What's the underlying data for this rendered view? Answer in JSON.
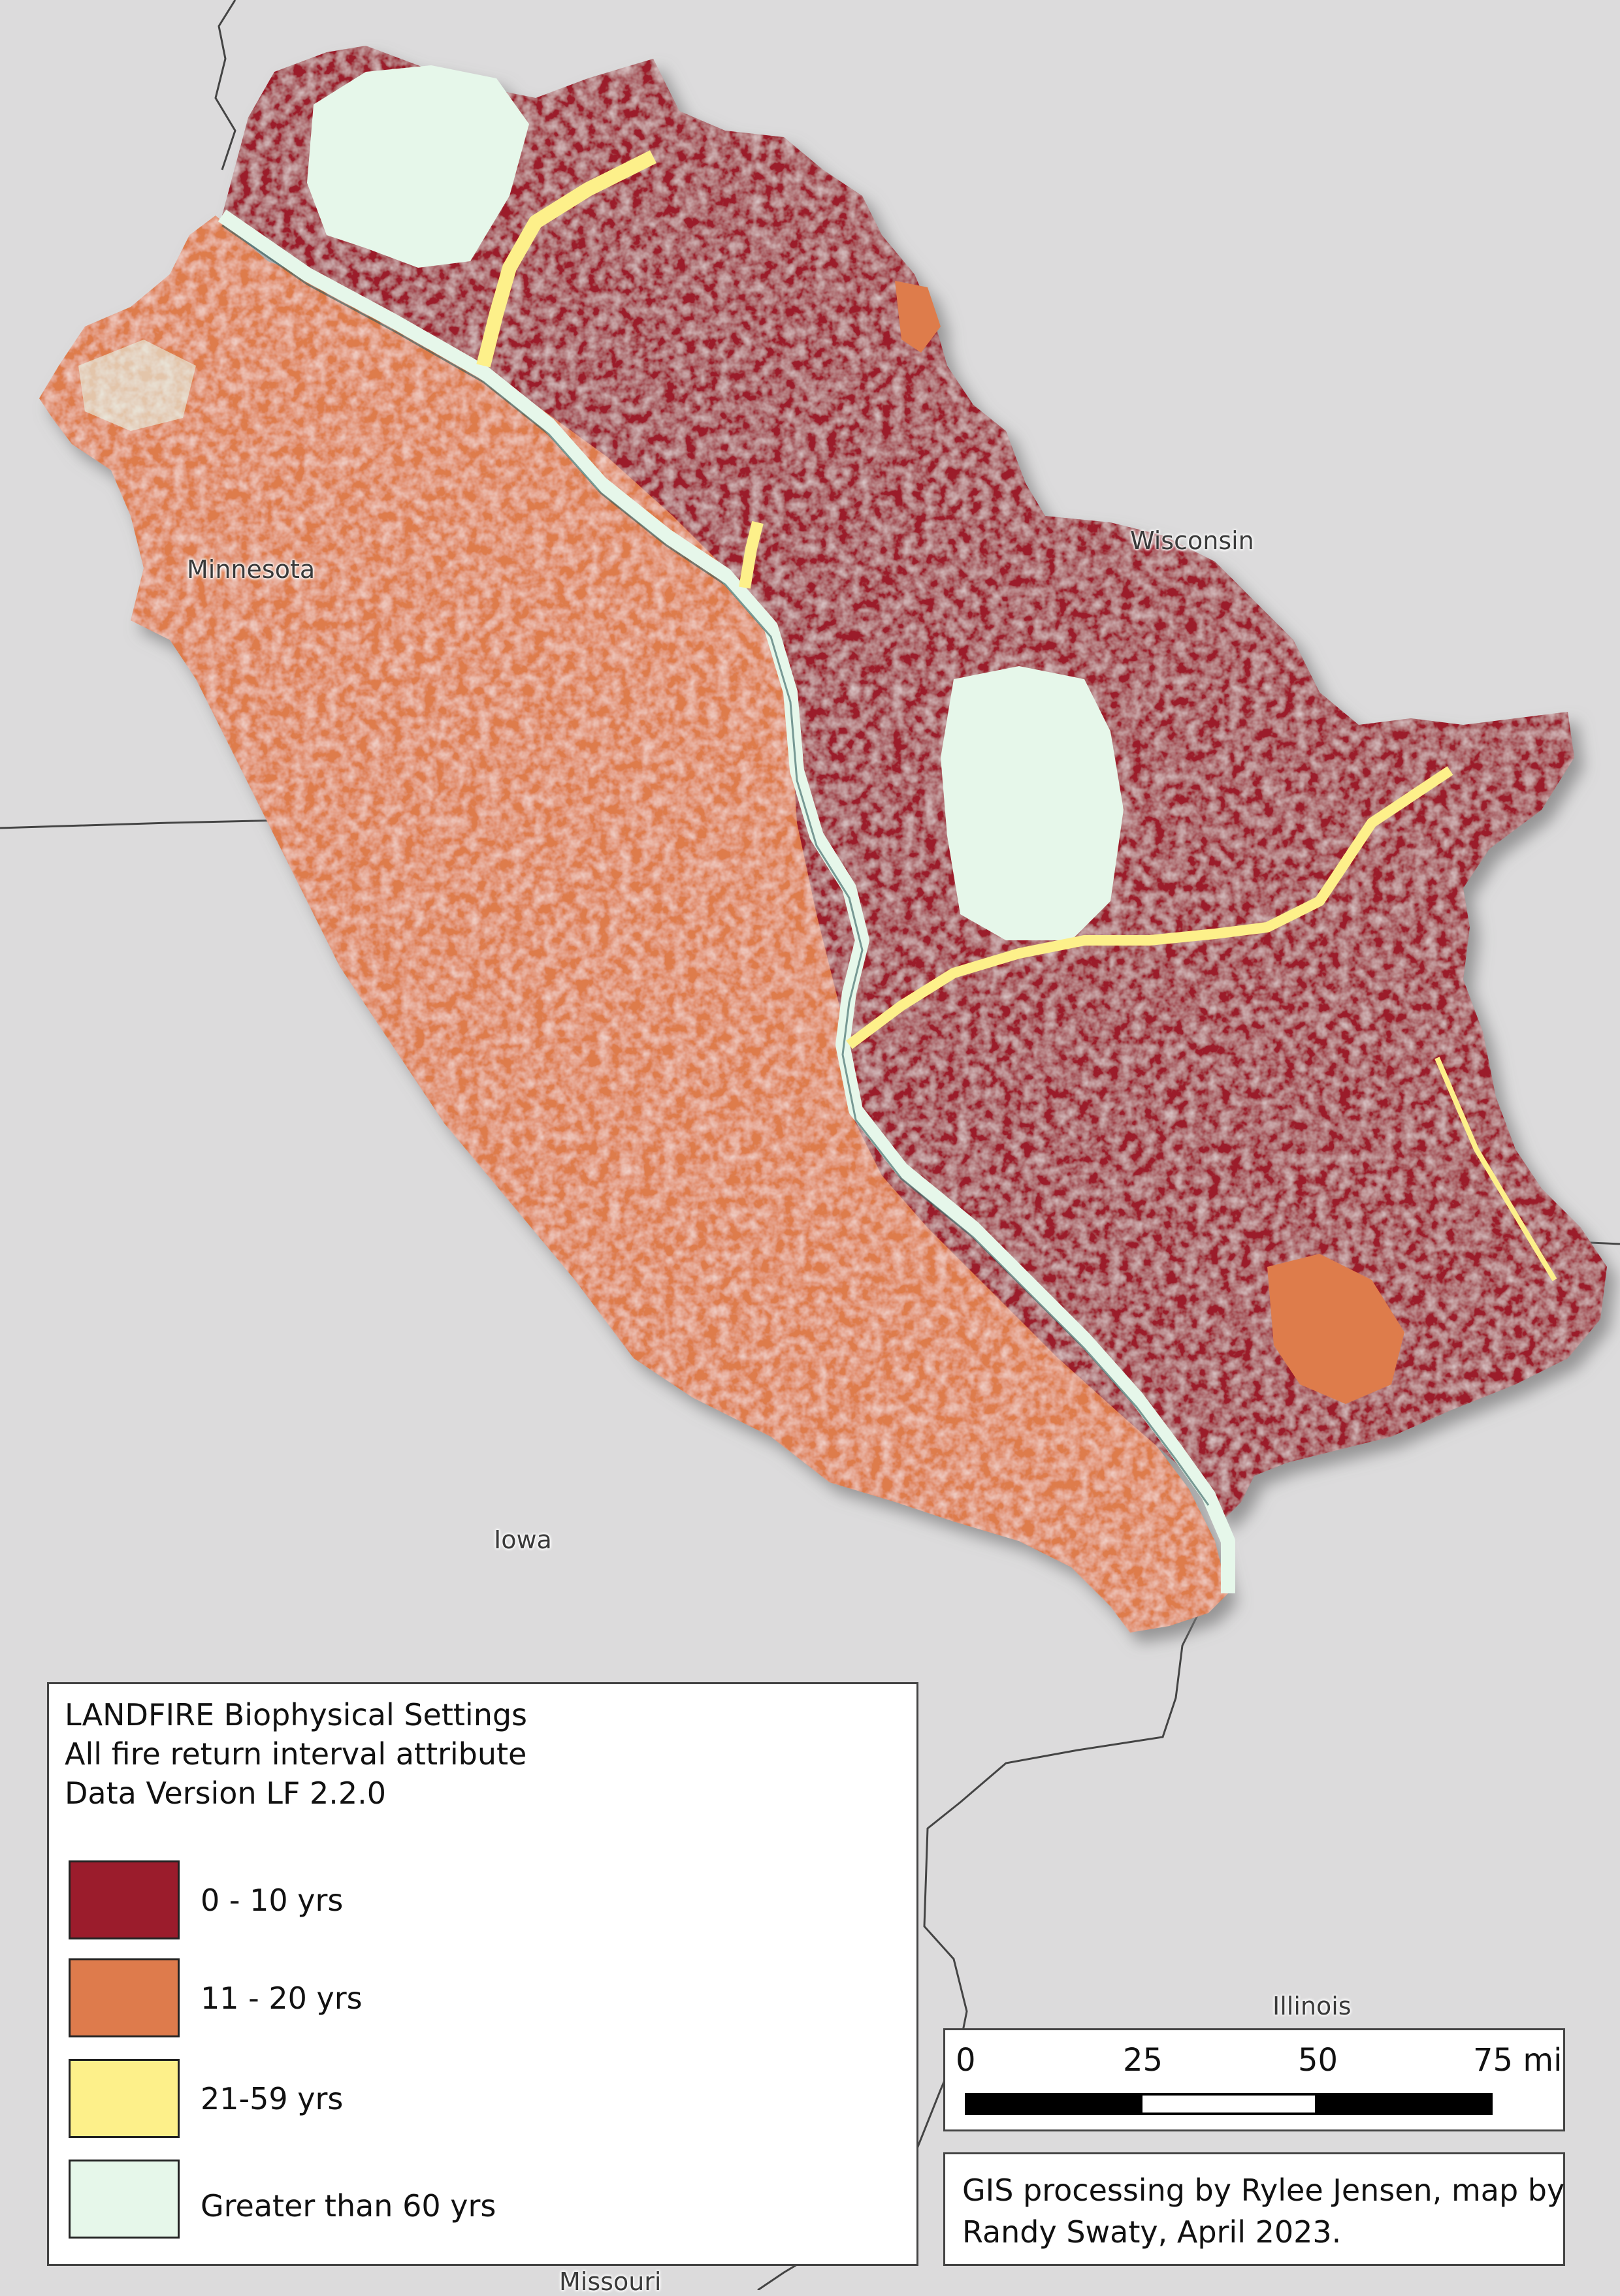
{
  "map": {
    "state_labels": {
      "minnesota": "Minnesota",
      "wisconsin": "Wisconsin",
      "iowa": "Iowa",
      "illinois": "Illinois",
      "missouri": "Missouri"
    },
    "colors": {
      "background": "#dcdbdc",
      "class_0_10": "#9b1c2c",
      "class_11_20": "#de7b4c",
      "class_21_59": "#fdf08a",
      "class_gt_60": "#e6f7ea"
    }
  },
  "legend": {
    "title_lines": [
      "LANDFIRE Biophysical Settings",
      "All fire return interval attribute",
      "Data Version LF 2.2.0"
    ],
    "items": [
      {
        "label": "0 - 10 yrs",
        "color": "#9b1c2c"
      },
      {
        "label": "11 - 20 yrs",
        "color": "#de7b4c"
      },
      {
        "label": "21-59 yrs",
        "color": "#fdf08a"
      },
      {
        "label": "Greater than 60 yrs",
        "color": "#e6f7ea"
      }
    ]
  },
  "scale_bar": {
    "ticks": [
      "0",
      "25",
      "50",
      "75 mi"
    ]
  },
  "credit": {
    "lines": [
      "GIS processing by Rylee Jensen, map by",
      "Randy Swaty, April 2023."
    ]
  }
}
